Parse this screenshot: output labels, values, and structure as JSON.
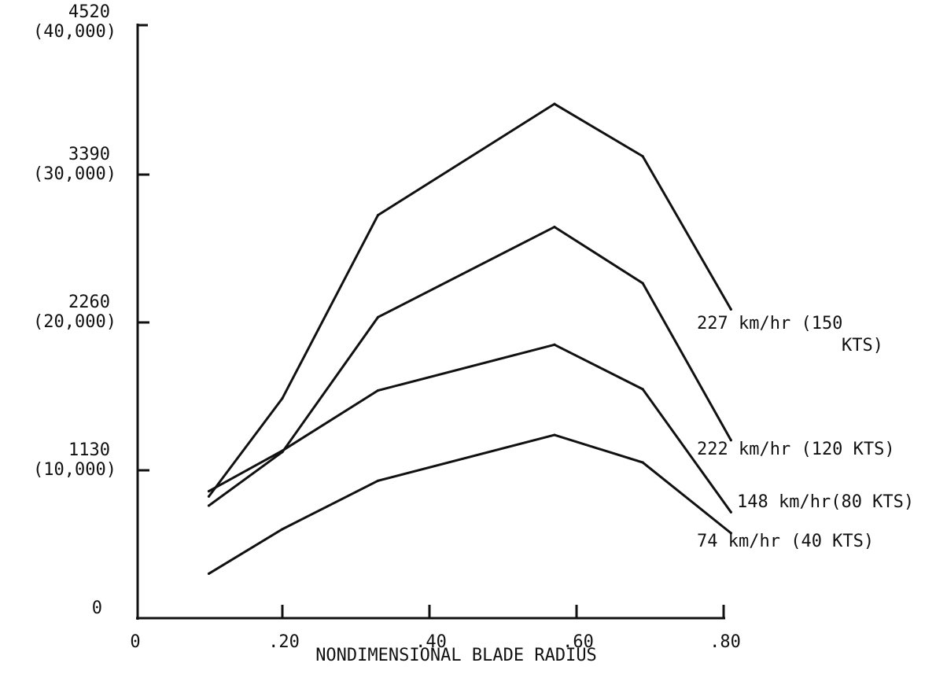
{
  "chart_data": {
    "type": "line",
    "title": "",
    "xlabel": "NONDIMENSIONAL BLADE RADIUS",
    "ylabel": "",
    "xlim": [
      0,
      0.8
    ],
    "ylim": [
      0,
      4520
    ],
    "grid": false,
    "x_ticks": [
      {
        "value": 0,
        "label": "0"
      },
      {
        "value": 0.2,
        "label": ".20"
      },
      {
        "value": 0.4,
        "label": ".40"
      },
      {
        "value": 0.6,
        "label": ".60"
      },
      {
        "value": 0.8,
        "label": ".80"
      }
    ],
    "y_ticks": [
      {
        "value": 0,
        "label": "0",
        "sublabel": ""
      },
      {
        "value": 1130,
        "label": "1130",
        "sublabel": "(10,000)"
      },
      {
        "value": 2260,
        "label": "2260",
        "sublabel": "(20,000)"
      },
      {
        "value": 3390,
        "label": "3390",
        "sublabel": "(30,000)"
      },
      {
        "value": 4520,
        "label": "4520",
        "sublabel": "(40,000)"
      }
    ],
    "series": [
      {
        "name": "227 km/hr (150 KTS)",
        "label_lines": [
          "227 km/hr  (150",
          "KTS)"
        ],
        "color": "#111111",
        "x": [
          0.1,
          0.2,
          0.33,
          0.57,
          0.69,
          0.81
        ],
        "y": [
          930,
          1680,
          3080,
          3930,
          3530,
          2360
        ]
      },
      {
        "name": "222 km/hr (120 KTS)",
        "label_lines": [
          "222 km/hr (120 KTS)"
        ],
        "color": "#111111",
        "x": [
          0.1,
          0.2,
          0.33,
          0.57,
          0.69,
          0.81
        ],
        "y": [
          860,
          1270,
          2300,
          2990,
          2560,
          1360
        ]
      },
      {
        "name": "148 km/hr(80 KTS)",
        "label_lines": [
          "148 km/hr(80 KTS)"
        ],
        "color": "#111111",
        "x": [
          0.1,
          0.2,
          0.33,
          0.57,
          0.69,
          0.81
        ],
        "y": [
          970,
          1280,
          1740,
          2090,
          1750,
          810
        ]
      },
      {
        "name": "74 km/hr (40 KTS)",
        "label_lines": [
          "74 km/hr  (40 KTS)"
        ],
        "color": "#111111",
        "x": [
          0.1,
          0.2,
          0.33,
          0.57,
          0.69,
          0.81
        ],
        "y": [
          340,
          680,
          1050,
          1400,
          1190,
          650
        ]
      }
    ]
  }
}
